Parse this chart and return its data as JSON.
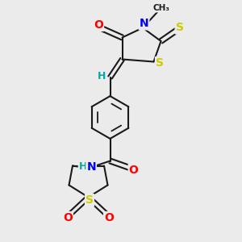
{
  "bg_color": "#ebebeb",
  "bond_color": "#1a1a1a",
  "atom_colors": {
    "O": "#ff0000",
    "N": "#0000ff",
    "S": "#cccc00",
    "C": "#1a1a1a",
    "H": "#00aaaa"
  },
  "figsize": [
    3.0,
    3.0
  ],
  "dpi": 100
}
